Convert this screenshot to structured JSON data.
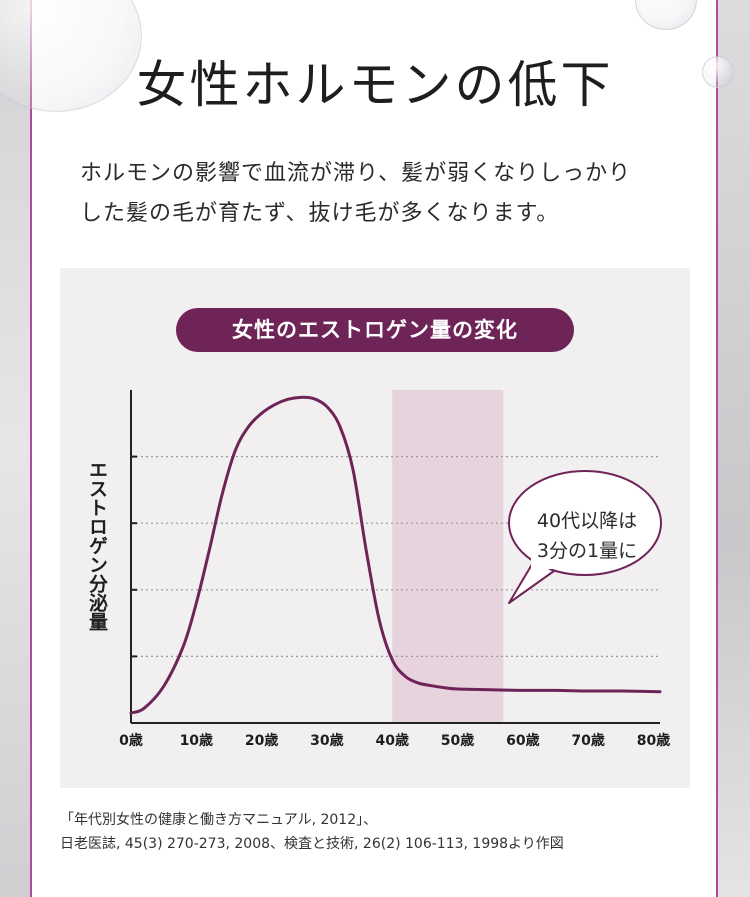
{
  "title": "女性ホルモンの低下",
  "lead": {
    "line1": "ホルモンの影響で血流が滞り、髪が弱くなりしっかり",
    "line2": "した髪の毛が育たず、抜け毛が多くなります。"
  },
  "colors": {
    "accent": "#6f2458",
    "highlight": "#f7f07a",
    "frame": "#b04a9a",
    "band": "#e7d3de",
    "panel": "#f1eff0"
  },
  "chart_data": {
    "type": "line",
    "title": "女性のエストロゲン量の変化",
    "ylabel": "エストロゲン分泌量",
    "xlabel": "",
    "x_tick_labels": [
      "0歳",
      "10歳",
      "20歳",
      "30歳",
      "40歳",
      "50歳",
      "60歳",
      "70歳",
      "80歳"
    ],
    "xlim": [
      0,
      81
    ],
    "ylim": [
      0,
      5
    ],
    "grid": "horizontal dotted",
    "highlight_range": [
      40,
      57
    ],
    "annotation": {
      "line1": "40代以降は",
      "line2": "3分の1量に"
    },
    "series": [
      {
        "x": [
          0,
          2,
          5,
          8,
          10,
          12,
          14,
          16,
          18,
          20,
          22,
          24,
          26,
          28,
          30,
          32,
          34,
          36,
          38,
          40,
          42,
          44,
          46,
          48,
          50,
          55,
          60,
          65,
          70,
          75,
          81
        ],
        "values": [
          0.15,
          0.22,
          0.55,
          1.15,
          1.8,
          2.6,
          3.45,
          4.1,
          4.45,
          4.65,
          4.78,
          4.86,
          4.89,
          4.87,
          4.75,
          4.45,
          3.8,
          2.6,
          1.55,
          0.95,
          0.7,
          0.6,
          0.56,
          0.53,
          0.51,
          0.5,
          0.49,
          0.49,
          0.48,
          0.48,
          0.47
        ]
      }
    ]
  },
  "source": {
    "line1": "「年代別女性の健康と働き方マニュアル, 2012」、",
    "line2": "日老医誌, 45(3) 270-273, 2008、検査と技術, 26(2) 106-113, 1998より作図"
  }
}
